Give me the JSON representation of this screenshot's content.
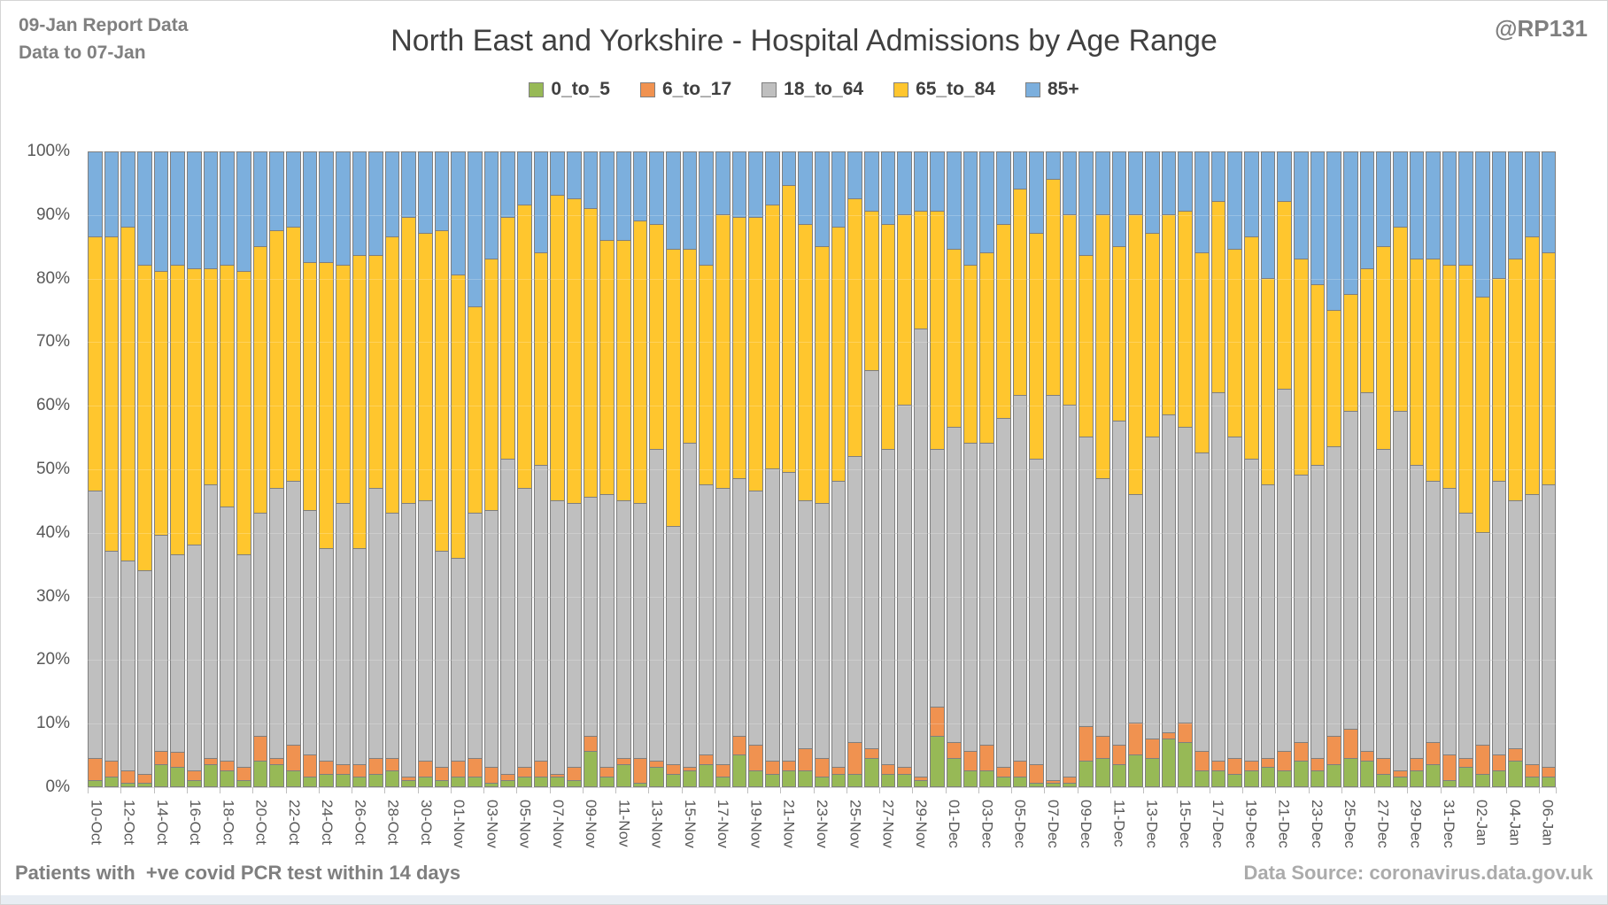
{
  "header": {
    "report_line1": "09-Jan Report Data",
    "report_line2": "Data to 07-Jan",
    "title": "North East and Yorkshire - Hospital Admissions by Age Range",
    "handle": "@RP131"
  },
  "footer": {
    "left": "Patients with  +ve covid PCR test within 14 days",
    "right": "Data Source: coronavirus.data.gov.uk"
  },
  "chart_data": {
    "type": "bar",
    "stacking": "percent_100",
    "title": "North East and Yorkshire - Hospital Admissions by Age Range",
    "xlabel": "",
    "ylabel": "",
    "ylim": [
      0,
      100
    ],
    "ytick_step": 10,
    "ytick_labels": [
      "100%",
      "90%",
      "80%",
      "70%",
      "60%",
      "50%",
      "40%",
      "30%",
      "20%",
      "10%",
      "0%"
    ],
    "grid": true,
    "legend_position": "top",
    "x_label_every": 2,
    "series_names": [
      "0_to_5",
      "6_to_17",
      "18_to_64",
      "65_to_84",
      "85+"
    ],
    "colors": {
      "0_to_5": "#97b956",
      "6_to_17": "#f09250",
      "18_to_64": "#bfbfbf",
      "65_to_84": "#ffc62e",
      "85+": "#7cafdd",
      "segment_border": "#7f7f7f"
    },
    "categories": [
      "10-Oct",
      "11-Oct",
      "12-Oct",
      "13-Oct",
      "14-Oct",
      "15-Oct",
      "16-Oct",
      "17-Oct",
      "18-Oct",
      "19-Oct",
      "20-Oct",
      "21-Oct",
      "22-Oct",
      "23-Oct",
      "24-Oct",
      "25-Oct",
      "26-Oct",
      "27-Oct",
      "28-Oct",
      "29-Oct",
      "30-Oct",
      "31-Oct",
      "01-Nov",
      "02-Nov",
      "03-Nov",
      "04-Nov",
      "05-Nov",
      "06-Nov",
      "07-Nov",
      "08-Nov",
      "09-Nov",
      "10-Nov",
      "11-Nov",
      "12-Nov",
      "13-Nov",
      "14-Nov",
      "15-Nov",
      "16-Nov",
      "17-Nov",
      "18-Nov",
      "19-Nov",
      "20-Nov",
      "21-Nov",
      "22-Nov",
      "23-Nov",
      "24-Nov",
      "25-Nov",
      "26-Nov",
      "27-Nov",
      "28-Nov",
      "29-Nov",
      "30-Nov",
      "01-Dec",
      "02-Dec",
      "03-Dec",
      "04-Dec",
      "05-Dec",
      "06-Dec",
      "07-Dec",
      "08-Dec",
      "09-Dec",
      "10-Dec",
      "11-Dec",
      "12-Dec",
      "13-Dec",
      "14-Dec",
      "15-Dec",
      "16-Dec",
      "17-Dec",
      "18-Dec",
      "19-Dec",
      "20-Dec",
      "21-Dec",
      "22-Dec",
      "23-Dec",
      "24-Dec",
      "25-Dec",
      "26-Dec",
      "27-Dec",
      "28-Dec",
      "29-Dec",
      "30-Dec",
      "31-Dec",
      "01-Jan",
      "02-Jan",
      "03-Jan",
      "04-Jan",
      "05-Jan",
      "06-Jan"
    ],
    "cumulative_top_percent": {
      "note": "cumulative stack boundaries read from chart; segment value = boundary minus previous boundary; 85+ fills to 100",
      "0_to_5": [
        1,
        1.5,
        0.5,
        0.5,
        3.5,
        3,
        1,
        3.5,
        2.5,
        1,
        4,
        3.5,
        2.5,
        1.5,
        2,
        2,
        1.5,
        2,
        2.5,
        1,
        1.5,
        1,
        1.5,
        1.5,
        0.5,
        1,
        1.5,
        1.5,
        1.5,
        1,
        5.5,
        1.5,
        3.5,
        0.5,
        3,
        2,
        2.5,
        3.5,
        1.5,
        5,
        2.5,
        2,
        2.5,
        2.5,
        1.5,
        2,
        2,
        4.5,
        2,
        2,
        1,
        8,
        4.5,
        2.5,
        2.5,
        1.5,
        1.5,
        0.5,
        0.5,
        0.5,
        4,
        4.5,
        3.5,
        5,
        4.5,
        7.5,
        7,
        2.5,
        2.5,
        2,
        2.5,
        3,
        2.5,
        4,
        2.5,
        3.5,
        4.5,
        4,
        2,
        1.5,
        2.5,
        3.5,
        1,
        3,
        2,
        2.5,
        4,
        1.5,
        1.5
      ],
      "6_to_17": [
        4.5,
        4,
        2.5,
        2,
        5.5,
        5.5,
        2.5,
        4.5,
        4,
        3,
        8,
        4.5,
        6.5,
        5,
        4,
        3.5,
        3.5,
        4.5,
        4.5,
        1.5,
        4,
        3,
        4,
        4.5,
        3,
        2,
        3,
        4,
        2,
        3,
        8,
        3,
        4.5,
        4.5,
        4,
        3.5,
        3,
        5,
        3.5,
        8,
        6.5,
        4,
        4,
        6,
        4.5,
        3,
        7,
        6,
        3.5,
        3,
        1.5,
        12.5,
        7,
        5.5,
        6.5,
        3,
        4,
        3.5,
        1,
        1.5,
        9.5,
        8,
        6.5,
        10,
        7.5,
        8.5,
        10,
        5.5,
        4,
        4.5,
        4,
        4.5,
        5.5,
        7,
        4.5,
        8,
        9,
        5.5,
        4.5,
        2.5,
        4.5,
        7,
        5,
        4.5,
        6.5,
        5,
        6,
        3.5,
        3
      ],
      "18_to_64": [
        46.5,
        37,
        35.5,
        34,
        39.5,
        36.5,
        38,
        47.5,
        44,
        36.5,
        43,
        47,
        48,
        43.5,
        37.5,
        44.5,
        37.5,
        47,
        43,
        44.5,
        45,
        37,
        36,
        43,
        43.5,
        51.5,
        47,
        50.5,
        45,
        44.5,
        45.5,
        46,
        45,
        44.5,
        53,
        41,
        54,
        47.5,
        47,
        48.5,
        46.5,
        50,
        49.5,
        45,
        44.5,
        48,
        52,
        65.5,
        53,
        60,
        72,
        53,
        56.5,
        54,
        54,
        58,
        61.5,
        51.5,
        61.5,
        60,
        55,
        48.5,
        57.5,
        46,
        55,
        58.5,
        56.5,
        52.5,
        62,
        55,
        51.5,
        47.5,
        62.5,
        49,
        50.5,
        53.5,
        59,
        62,
        53,
        59,
        50.5,
        48,
        47,
        43,
        40,
        48,
        45,
        46,
        47.5
      ],
      "65_to_84": [
        86.5,
        86.5,
        88,
        82,
        81,
        82,
        81.5,
        81.5,
        82,
        81,
        85,
        87.5,
        88,
        82.5,
        82.5,
        82,
        83.5,
        83.5,
        86.5,
        89.5,
        87,
        87.5,
        80.5,
        75.5,
        83,
        89.5,
        91.5,
        84,
        93,
        92.5,
        91,
        86,
        86,
        89,
        88.5,
        84.5,
        84.5,
        82,
        90,
        89.5,
        89.5,
        91.5,
        94.5,
        88.5,
        85,
        88,
        92.5,
        90.5,
        88.5,
        90,
        90.5,
        90.5,
        84.5,
        82,
        84,
        88.5,
        94,
        87,
        95.5,
        90,
        83.5,
        90,
        85,
        90,
        87,
        90,
        90.5,
        84,
        92,
        84.5,
        86.5,
        80,
        92,
        83,
        79,
        75,
        77.5,
        81.5,
        85,
        88,
        83,
        83,
        82,
        82,
        77,
        80,
        83,
        86.5,
        84
      ]
    }
  }
}
